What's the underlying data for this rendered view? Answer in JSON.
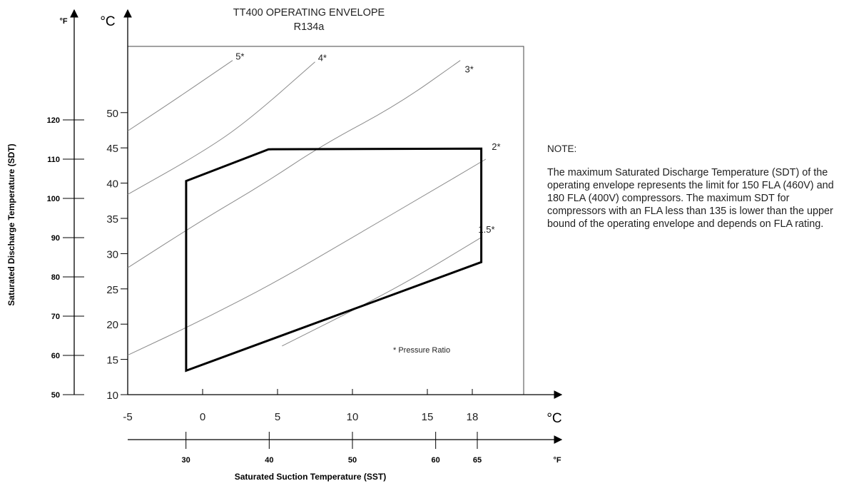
{
  "chart_data": {
    "type": "line",
    "title": "TT400 OPERATING ENVELOPE",
    "subtitle": "R134a",
    "x_axis": {
      "label": "Saturated Suction Temperature (SST)",
      "unit_c": "°C",
      "unit_f": "°F",
      "range_c": [
        -5,
        18
      ],
      "ticks_c": [
        -5,
        0,
        5,
        10,
        15,
        18
      ],
      "ticks_f": [
        30,
        40,
        50,
        60,
        65
      ]
    },
    "y_axis": {
      "label": "Saturated Discharge Temperature (SDT)",
      "unit_c": "°C",
      "unit_f": "°F",
      "range_c": [
        10,
        50
      ],
      "ticks_c": [
        10,
        15,
        20,
        25,
        30,
        35,
        40,
        45,
        50
      ],
      "ticks_f": [
        50,
        60,
        70,
        80,
        90,
        100,
        110,
        120
      ]
    },
    "envelope": {
      "name": "Operating envelope",
      "points": [
        {
          "x": -1.1,
          "y": 13.4
        },
        {
          "x": -1.1,
          "y": 40.3
        },
        {
          "x": 4.4,
          "y": 44.8
        },
        {
          "x": 18.6,
          "y": 44.9
        },
        {
          "x": 18.6,
          "y": 28.8
        }
      ]
    },
    "series": [
      {
        "name": "5*",
        "label_x": 2.2,
        "label_y": 57.5,
        "points": [
          {
            "x": -5,
            "y": 47.4
          },
          {
            "x": -2,
            "y": 51.6
          },
          {
            "x": 2,
            "y": 57.4
          }
        ]
      },
      {
        "name": "4*",
        "label_x": 7.7,
        "label_y": 57.3,
        "points": [
          {
            "x": -5,
            "y": 38.4
          },
          {
            "x": 0,
            "y": 44.4
          },
          {
            "x": 3,
            "y": 48.8
          },
          {
            "x": 7.5,
            "y": 57.2
          }
        ]
      },
      {
        "name": "3*",
        "label_x": 17.5,
        "label_y": 55.7,
        "points": [
          {
            "x": -5,
            "y": 28.0
          },
          {
            "x": 0,
            "y": 34.8
          },
          {
            "x": 4,
            "y": 39.8
          },
          {
            "x": 8,
            "y": 45.4
          },
          {
            "x": 13,
            "y": 51.1
          },
          {
            "x": 17.2,
            "y": 57.4
          }
        ]
      },
      {
        "name": "2*",
        "label_x": 19.3,
        "label_y": 44.7,
        "points": [
          {
            "x": -5,
            "y": 15.6
          },
          {
            "x": 0,
            "y": 20.6
          },
          {
            "x": 5,
            "y": 26.1
          },
          {
            "x": 10,
            "y": 32.3
          },
          {
            "x": 15,
            "y": 38.5
          },
          {
            "x": 18.9,
            "y": 43.4
          }
        ]
      },
      {
        "name": "1.5*",
        "label_x": 18.4,
        "label_y": 33.0,
        "points": [
          {
            "x": 5.3,
            "y": 16.9
          },
          {
            "x": 10,
            "y": 21.9
          },
          {
            "x": 14,
            "y": 26.4
          },
          {
            "x": 18.6,
            "y": 32.3
          }
        ]
      }
    ],
    "annotation": "* Pressure Ratio",
    "grid": false,
    "legend": "none"
  },
  "note": {
    "title": "NOTE:",
    "body": "The maximum Saturated Discharge Temperature (SDT) of the operating envelope represents the limit for 150 FLA (460V) and 180 FLA (400V) compressors. The maximum SDT for compressors with an FLA less than 135 is lower than the upper bound of the operating envelope and depends on FLA rating."
  }
}
